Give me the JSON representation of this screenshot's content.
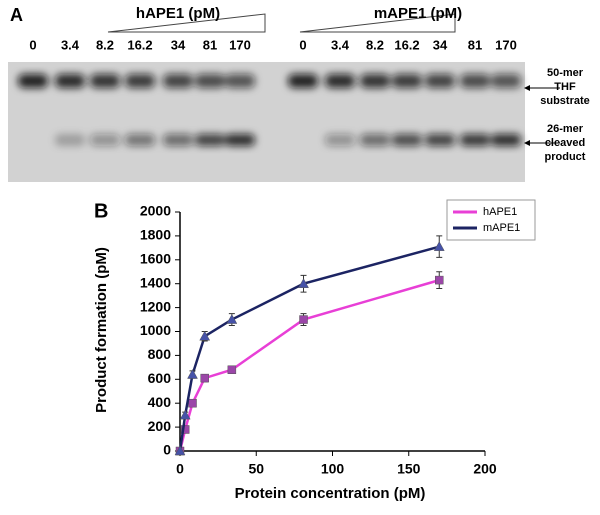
{
  "gel": {
    "label": "A",
    "groups": [
      {
        "name": "hAPE1 (pM)",
        "lanes": [
          "0",
          "3.4",
          "8.2",
          "16.2",
          "34",
          "81",
          "170"
        ]
      },
      {
        "name": "mAPE1 (pM)",
        "lanes": [
          "0",
          "3.4",
          "8.2",
          "16.2",
          "34",
          "81",
          "170"
        ]
      }
    ],
    "bands": [
      {
        "lines": [
          "50-mer",
          "THF",
          "substrate"
        ]
      },
      {
        "lines": [
          "26-mer",
          "cleaved",
          "product"
        ]
      }
    ]
  },
  "chart_data": {
    "type": "line",
    "label": "B",
    "xlabel": "Protein concentration (pM)",
    "ylabel": "Product formation (pM)",
    "xlim": [
      0,
      200
    ],
    "xticks": [
      0,
      50,
      100,
      150,
      200
    ],
    "ylim": [
      0,
      2000
    ],
    "yticks": [
      0,
      200,
      400,
      600,
      800,
      1000,
      1200,
      1400,
      1600,
      1800,
      2000
    ],
    "legend": "upper right",
    "series": [
      {
        "name": "hAPE1",
        "color": "#e83fd6",
        "marker_color": "#9b46a8",
        "marker": "square",
        "x": [
          0,
          3.4,
          8.2,
          16.2,
          34,
          81,
          170
        ],
        "values": [
          0,
          180,
          400,
          610,
          680,
          1100,
          1430
        ],
        "errors": [
          0,
          20,
          25,
          30,
          30,
          50,
          70
        ]
      },
      {
        "name": "mAPE1",
        "color": "#1c2463",
        "marker_color": "#4652a8",
        "marker": "triangle",
        "x": [
          0,
          3.4,
          8.2,
          16.2,
          34,
          81,
          170
        ],
        "values": [
          0,
          300,
          640,
          960,
          1100,
          1400,
          1710
        ],
        "errors": [
          0,
          25,
          30,
          40,
          50,
          70,
          90
        ]
      }
    ]
  }
}
